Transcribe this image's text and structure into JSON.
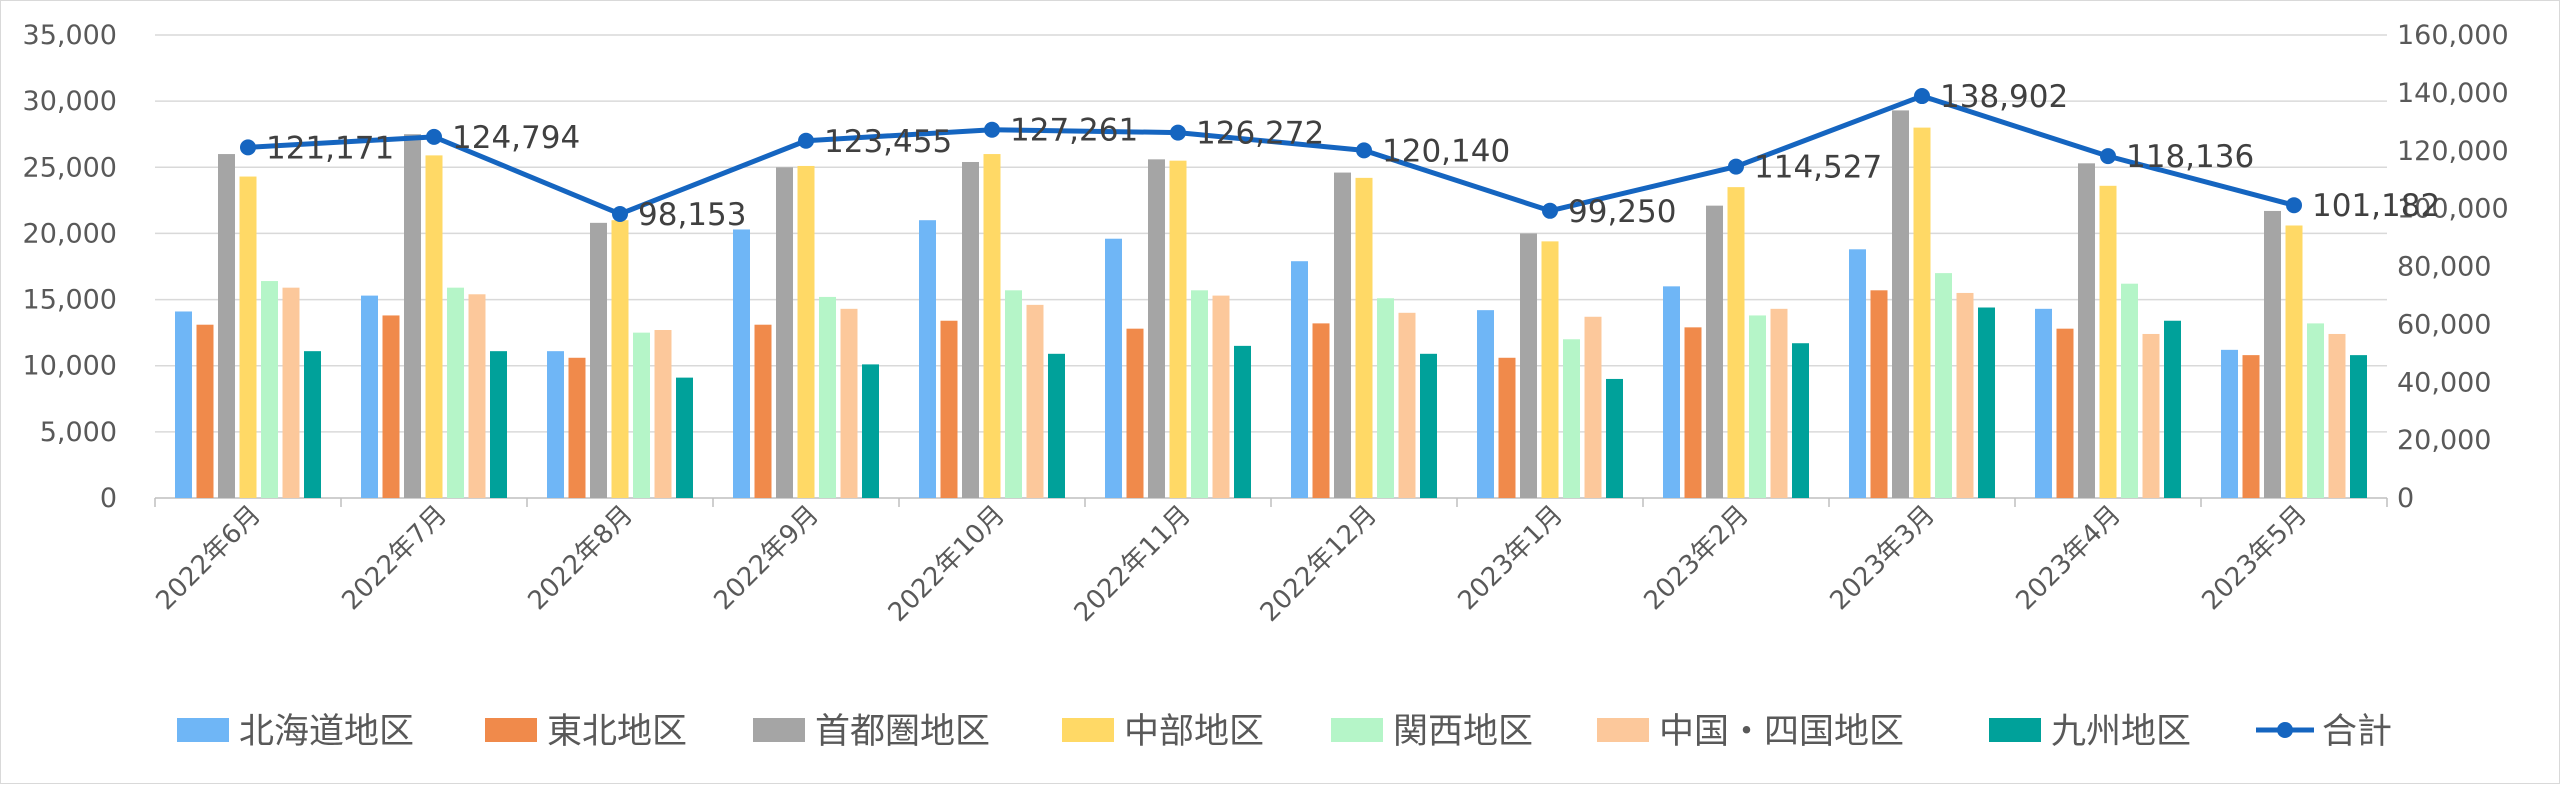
{
  "chart_data": {
    "type": "bar",
    "title": "",
    "categories": [
      "2022年6月",
      "2022年7月",
      "2022年8月",
      "2022年9月",
      "2022年10月",
      "2022年11月",
      "2022年12月",
      "2023年1月",
      "2023年2月",
      "2023年3月",
      "2023年4月",
      "2023年5月"
    ],
    "left_axis": {
      "min": 0,
      "max": 35000,
      "step": 5000,
      "ticks": [
        "0",
        "5,000",
        "10,000",
        "15,000",
        "20,000",
        "25,000",
        "30,000",
        "35,000"
      ]
    },
    "right_axis": {
      "min": 0,
      "max": 160000,
      "step": 20000,
      "ticks": [
        "0",
        "20,000",
        "40,000",
        "60,000",
        "80,000",
        "100,000",
        "120,000",
        "140,000",
        "160,000"
      ]
    },
    "grid": true,
    "legend_position": "bottom",
    "series": [
      {
        "name": "北海道地区",
        "color": "#6FB6F6",
        "axis": "left",
        "values": [
          14100,
          15300,
          11100,
          20300,
          21000,
          19600,
          17900,
          14200,
          16000,
          18800,
          14300,
          11200
        ]
      },
      {
        "name": "東北地区",
        "color": "#F08A4B",
        "axis": "left",
        "values": [
          13100,
          13800,
          10600,
          13100,
          13400,
          12800,
          13200,
          10600,
          12900,
          15700,
          12800,
          10800
        ]
      },
      {
        "name": "首都圏地区",
        "color": "#A5A5A5",
        "axis": "left",
        "values": [
          26000,
          27500,
          20800,
          25000,
          25400,
          25600,
          24600,
          20000,
          22100,
          29300,
          25300,
          21700
        ]
      },
      {
        "name": "中部地区",
        "color": "#FFD966",
        "axis": "left",
        "values": [
          24300,
          25900,
          21000,
          25100,
          26000,
          25500,
          24200,
          19400,
          23500,
          28000,
          23600,
          20600
        ]
      },
      {
        "name": "関西地区",
        "color": "#B5F5C8",
        "axis": "left",
        "values": [
          16400,
          15900,
          12500,
          15200,
          15700,
          15700,
          15100,
          12000,
          13800,
          17000,
          16200,
          13200
        ]
      },
      {
        "name": "中国・四国地区",
        "color": "#FCC89B",
        "axis": "left",
        "values": [
          15900,
          15400,
          12700,
          14300,
          14600,
          15300,
          14000,
          13700,
          14300,
          15500,
          12400,
          12400
        ]
      },
      {
        "name": "九州地区",
        "color": "#00A19A",
        "axis": "left",
        "values": [
          11100,
          11100,
          9100,
          10100,
          10900,
          11500,
          10900,
          9000,
          11700,
          14400,
          13400,
          10800
        ]
      },
      {
        "name": "合計",
        "color": "#1565C0",
        "axis": "right",
        "type": "line",
        "values": [
          121171,
          124794,
          98153,
          123455,
          127261,
          126272,
          120140,
          99250,
          114527,
          138902,
          118136,
          101182
        ],
        "labels": [
          "121,171",
          "124,794",
          "98,153",
          "123,455",
          "127,261",
          "126,272",
          "120,140",
          "99,250",
          "114,527",
          "138,902",
          "118,136",
          "101,182"
        ]
      }
    ]
  }
}
